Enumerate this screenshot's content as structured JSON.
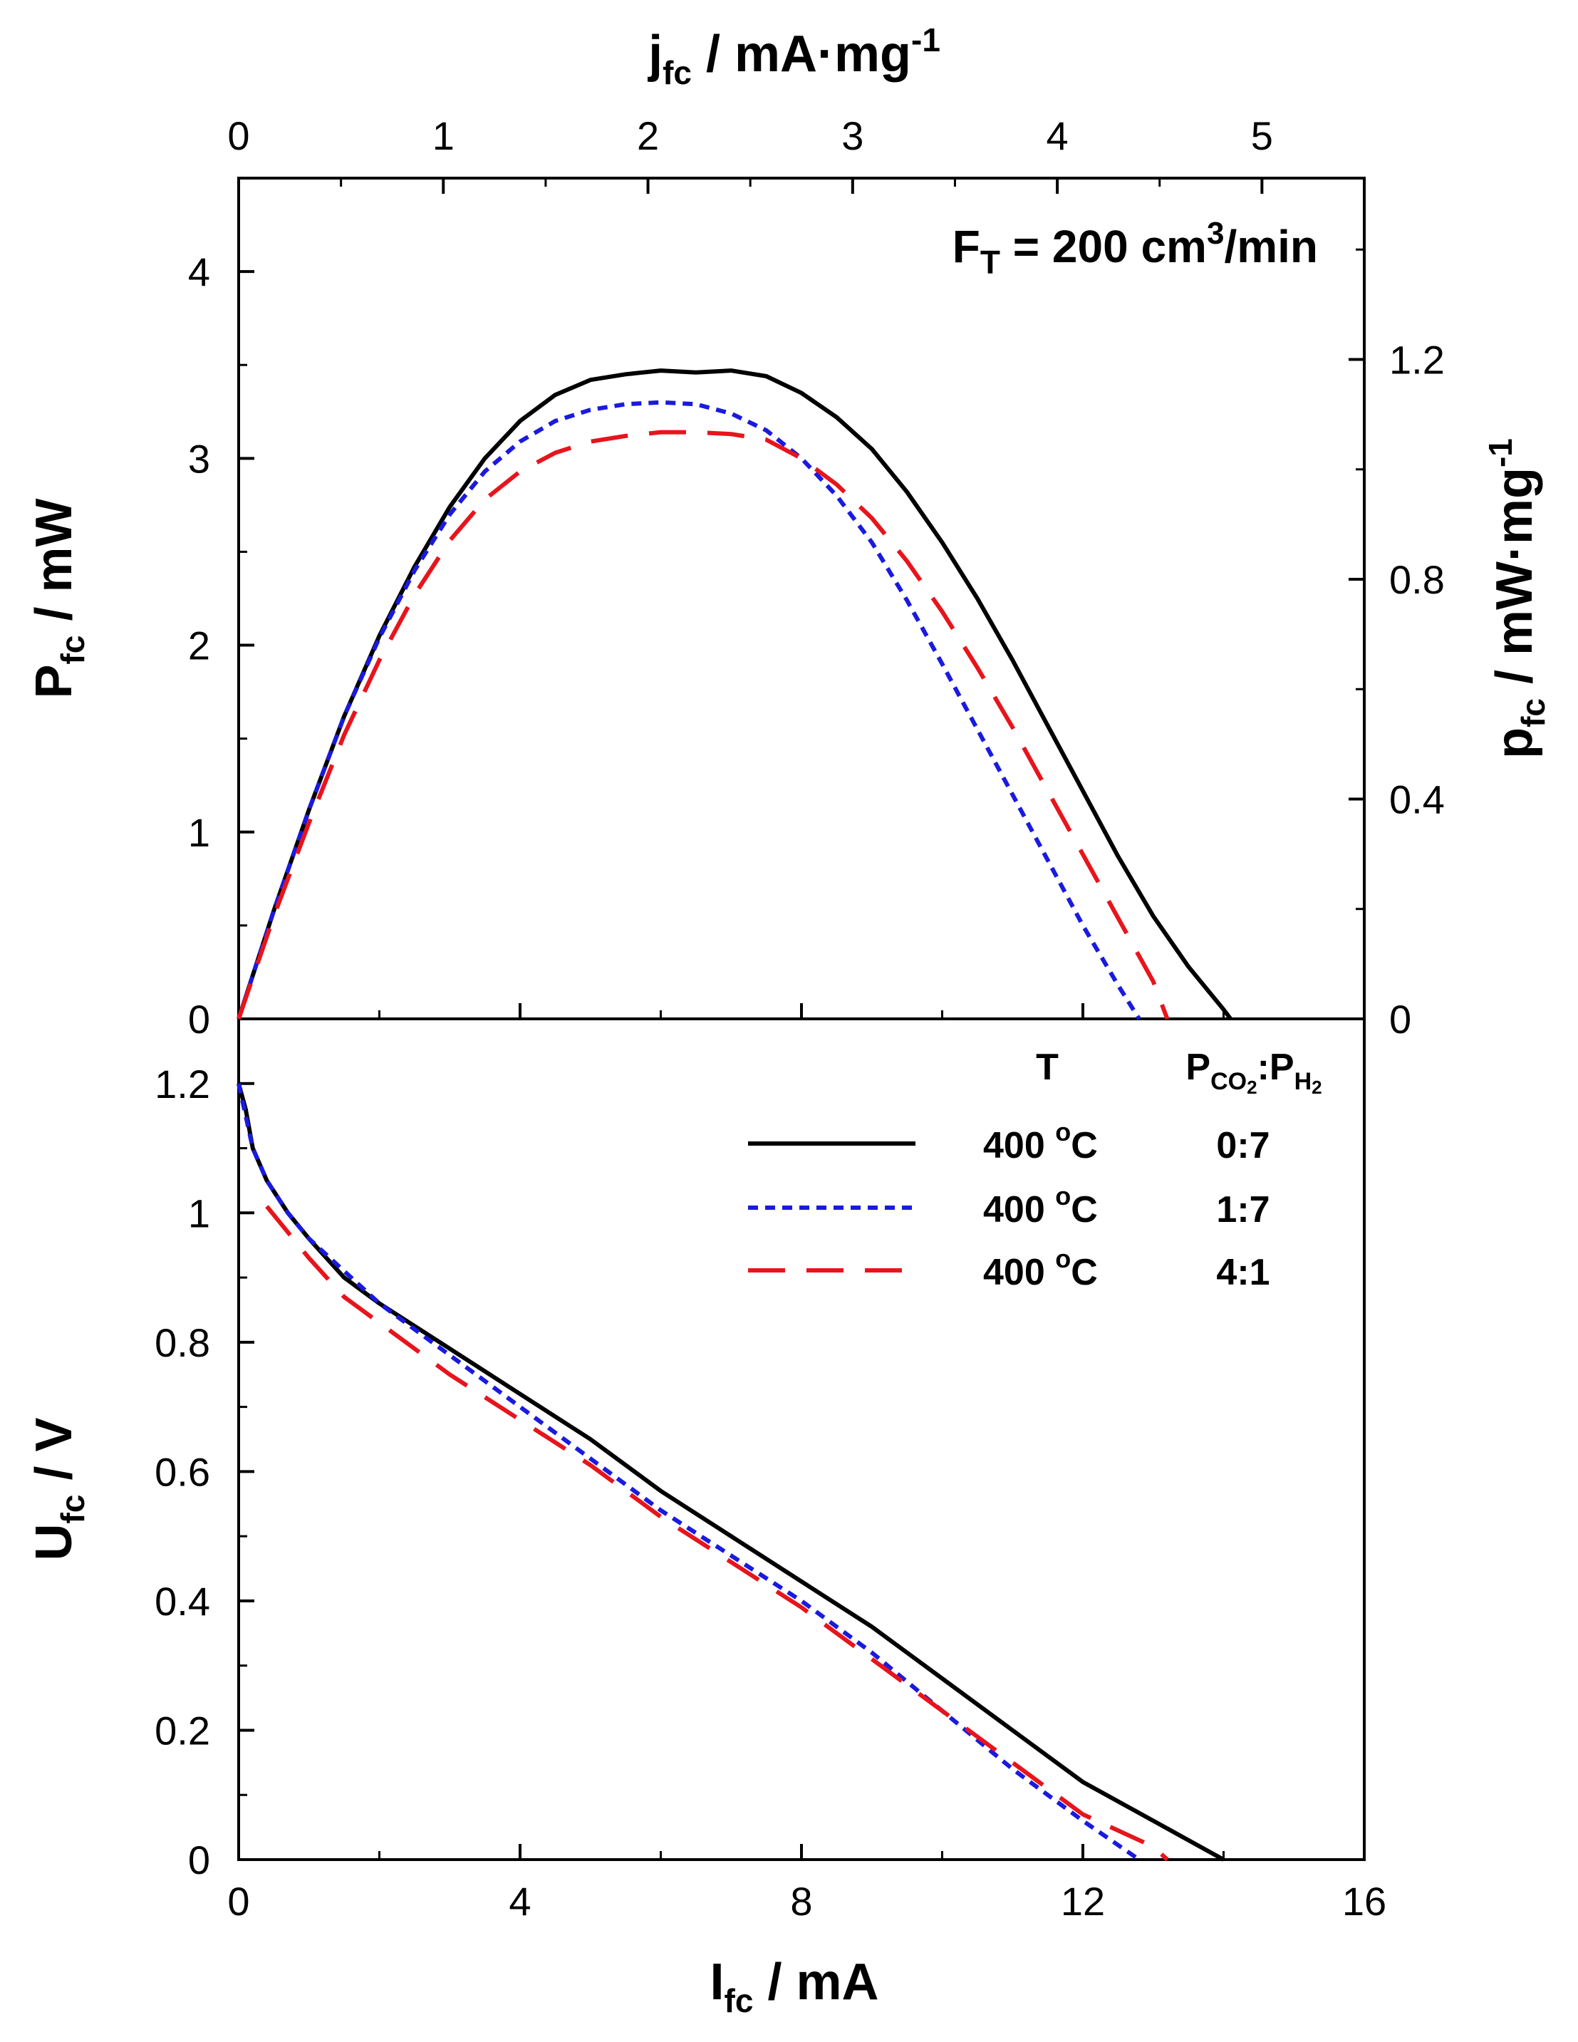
{
  "chart_data": {
    "type": "line",
    "annotation": {
      "main": "F",
      "sub": "T",
      "rest": " = 200 cm",
      "sup": "3",
      "tail": "/min"
    },
    "x_axis": {
      "label_main": "I",
      "label_sub": "fc",
      "label_rest": " / mA",
      "range": [
        0,
        16
      ],
      "ticks": [
        "0",
        "4",
        "8",
        "12",
        "16"
      ]
    },
    "x_top_axis": {
      "label_main": "j",
      "label_sub": "fc",
      "label_rest": " / mA·mg",
      "label_sup": "-1",
      "range": [
        0,
        5.5
      ],
      "ticks": [
        "0",
        "1",
        "2",
        "3",
        "4",
        "5"
      ]
    },
    "top_panel": {
      "y_axis": {
        "label_main": "P",
        "label_sub": "fc",
        "label_rest": " / mW",
        "range": [
          0,
          4.5
        ],
        "ticks": [
          "0",
          "1",
          "2",
          "3",
          "4"
        ]
      },
      "y_right_axis": {
        "label_main": "p",
        "label_sub": "fc",
        "label_rest": " / mW·mg",
        "label_sup": "-1",
        "range": [
          0,
          1.53
        ],
        "ticks": [
          "0",
          "0.4",
          "0.8",
          "1.2"
        ]
      },
      "series": [
        {
          "id": "s1",
          "color": "#000000",
          "dash": "solid",
          "x": [
            0,
            0.5,
            1,
            1.5,
            2,
            2.5,
            3,
            3.5,
            4,
            4.5,
            5,
            5.5,
            6,
            6.5,
            7,
            7.5,
            8,
            8.5,
            9,
            9.5,
            10,
            10.5,
            11,
            11.5,
            12,
            12.5,
            13,
            13.5,
            14,
            14.1
          ],
          "y": [
            0,
            0.58,
            1.12,
            1.62,
            2.05,
            2.42,
            2.74,
            3.0,
            3.2,
            3.34,
            3.42,
            3.45,
            3.47,
            3.46,
            3.47,
            3.44,
            3.35,
            3.22,
            3.05,
            2.82,
            2.55,
            2.25,
            1.92,
            1.57,
            1.22,
            0.87,
            0.55,
            0.28,
            0.05,
            0.0
          ]
        },
        {
          "id": "s2",
          "color": "#1a1adf",
          "dash": "dotted",
          "x": [
            0,
            0.5,
            1,
            1.5,
            2,
            2.5,
            3,
            3.5,
            4,
            4.5,
            5,
            5.5,
            6,
            6.5,
            7,
            7.5,
            8,
            8.5,
            9,
            9.5,
            10,
            10.5,
            11,
            11.5,
            12,
            12.5,
            12.8
          ],
          "y": [
            0,
            0.58,
            1.12,
            1.62,
            2.04,
            2.4,
            2.7,
            2.93,
            3.09,
            3.2,
            3.26,
            3.29,
            3.3,
            3.29,
            3.24,
            3.15,
            3.0,
            2.8,
            2.55,
            2.24,
            1.9,
            1.55,
            1.2,
            0.85,
            0.5,
            0.18,
            0.0
          ]
        },
        {
          "id": "s3",
          "color": "#e8141c",
          "dash": "dashed",
          "x": [
            0,
            0.5,
            1,
            1.5,
            2,
            2.5,
            3,
            3.5,
            4,
            4.5,
            5,
            5.5,
            6,
            6.5,
            7,
            7.5,
            8,
            8.5,
            9,
            9.5,
            10,
            10.5,
            11,
            11.5,
            12,
            12.5,
            13,
            13.2
          ],
          "y": [
            0,
            0.55,
            1.05,
            1.52,
            1.92,
            2.27,
            2.56,
            2.78,
            2.93,
            3.03,
            3.09,
            3.12,
            3.14,
            3.14,
            3.13,
            3.1,
            3.0,
            2.86,
            2.68,
            2.45,
            2.18,
            1.88,
            1.56,
            1.22,
            0.88,
            0.54,
            0.2,
            0.0
          ]
        }
      ]
    },
    "bottom_panel": {
      "y_axis": {
        "label_main": "U",
        "label_sub": "fc",
        "label_rest": " / V",
        "range": [
          0,
          1.3
        ],
        "ticks": [
          "0",
          "0.2",
          "0.4",
          "0.6",
          "0.8",
          "1",
          "1.2"
        ]
      },
      "series": [
        {
          "id": "s1",
          "color": "#000000",
          "dash": "solid",
          "x": [
            0,
            0.1,
            0.2,
            0.4,
            0.7,
            1,
            1.5,
            2,
            3,
            4,
            5,
            6,
            7,
            8,
            9,
            10,
            11,
            12,
            13,
            14
          ],
          "y": [
            1.2,
            1.16,
            1.1,
            1.05,
            1.0,
            0.96,
            0.9,
            0.86,
            0.79,
            0.72,
            0.65,
            0.57,
            0.5,
            0.43,
            0.36,
            0.28,
            0.2,
            0.12,
            0.06,
            0.0
          ]
        },
        {
          "id": "s2",
          "color": "#1a1adf",
          "dash": "dotted",
          "x": [
            0,
            0.1,
            0.2,
            0.4,
            0.7,
            1,
            1.5,
            2,
            3,
            4,
            5,
            6,
            7,
            8,
            9,
            10,
            11,
            12,
            12.8
          ],
          "y": [
            1.2,
            1.15,
            1.1,
            1.05,
            1.0,
            0.96,
            0.91,
            0.86,
            0.78,
            0.7,
            0.62,
            0.54,
            0.47,
            0.4,
            0.32,
            0.23,
            0.14,
            0.06,
            0.0
          ]
        },
        {
          "id": "s3",
          "color": "#e8141c",
          "dash": "dashed",
          "x": [
            0.4,
            0.7,
            1,
            1.5,
            2,
            3,
            4,
            5,
            6,
            7,
            8,
            9,
            10,
            11,
            12,
            13,
            13.2
          ],
          "y": [
            1.01,
            0.97,
            0.93,
            0.87,
            0.83,
            0.75,
            0.68,
            0.61,
            0.53,
            0.46,
            0.39,
            0.31,
            0.23,
            0.15,
            0.07,
            0.02,
            0.0
          ]
        }
      ]
    },
    "legend": {
      "header_t": "T",
      "header_p": {
        "a": "P",
        "a_sub": "CO",
        "a_sub2": "2",
        "sep": ":P",
        "b_sub": "H",
        "b_sub2": "2"
      },
      "placement": "bottom-panel top-right",
      "entries": [
        {
          "series": "s1",
          "temp": "400 ",
          "temp_sup": "o",
          "temp_unit": "C",
          "ratio": "0:7"
        },
        {
          "series": "s2",
          "temp": "400 ",
          "temp_sup": "o",
          "temp_unit": "C",
          "ratio": "1:7"
        },
        {
          "series": "s3",
          "temp": "400 ",
          "temp_sup": "o",
          "temp_unit": "C",
          "ratio": "4:1"
        }
      ]
    }
  }
}
